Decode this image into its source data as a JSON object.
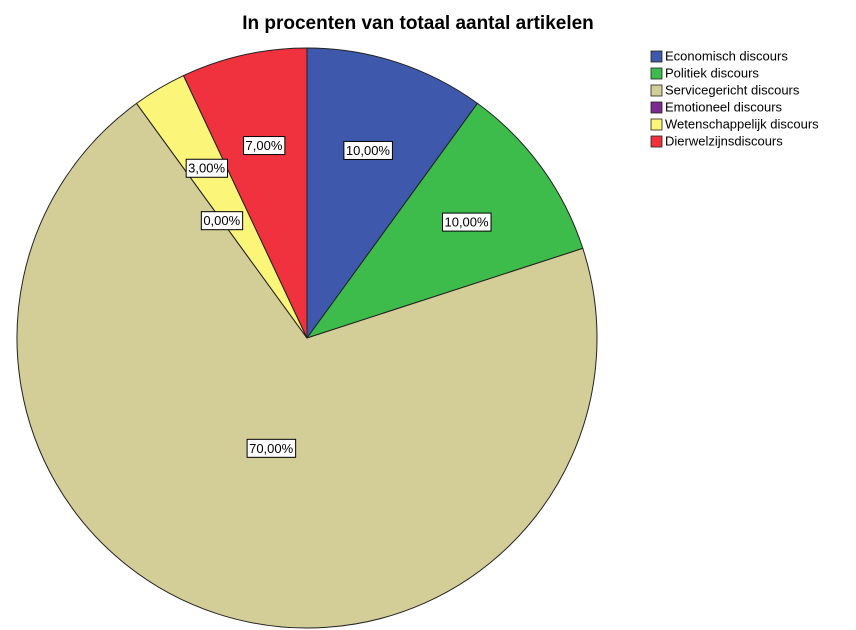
{
  "chart_data": {
    "type": "pie",
    "title": "In procenten van totaal aantal artikelen",
    "categories": [
      "Economisch discours",
      "Politiek discours",
      "Servicegericht discours",
      "Emotioneel discours",
      "Wetenschappelijk discours",
      "Dierwelzijnsdiscours"
    ],
    "values": [
      10,
      10,
      70,
      0,
      3,
      7
    ],
    "value_labels": [
      "10,00%",
      "10,00%",
      "70,00%",
      "0,00%",
      "3,00%",
      "7,00%"
    ],
    "colors": [
      "#3e58ac",
      "#3dbb4b",
      "#d3ce97",
      "#7b2b8f",
      "#fbf57a",
      "#ef323d"
    ],
    "legend": "top-right"
  }
}
